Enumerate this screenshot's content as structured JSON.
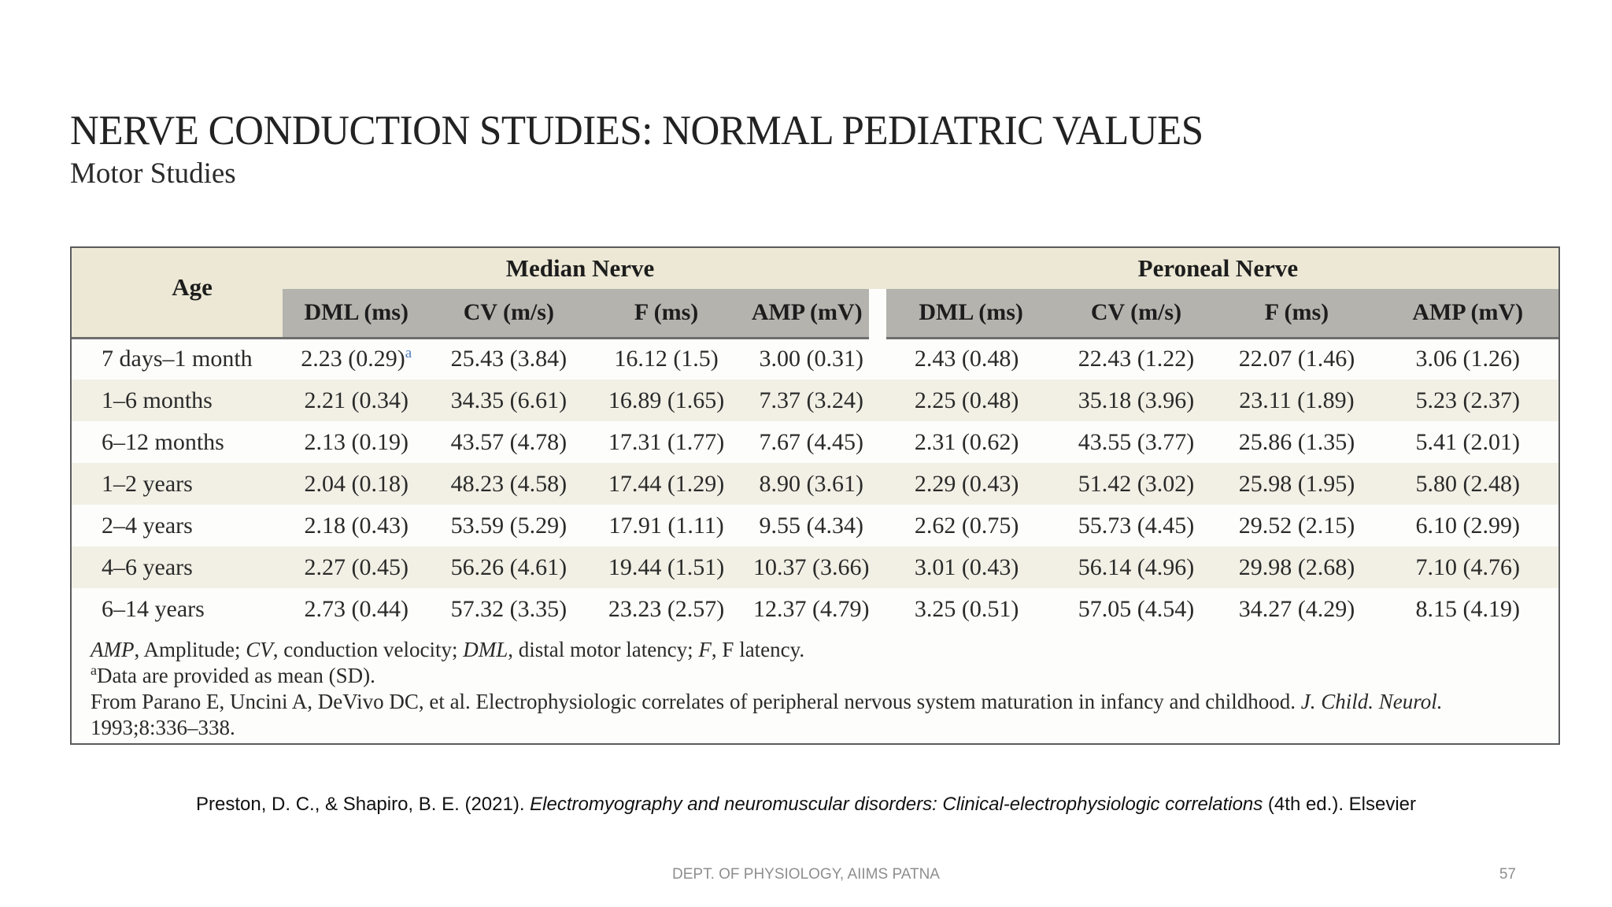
{
  "header": {
    "title": "NERVE CONDUCTION STUDIES: NORMAL PEDIATRIC VALUES",
    "subtitle": "Motor Studies"
  },
  "table": {
    "age_header": "Age",
    "groups": [
      "Median Nerve",
      "Peroneal Nerve"
    ],
    "col_headers": [
      "DML (ms)",
      "CV (m/s)",
      "F (ms)",
      "AMP (mV)"
    ],
    "sup_marker": "a",
    "rows": [
      {
        "age": "7 days–1 month",
        "cells": [
          "2.23 (0.29)",
          "25.43 (3.84)",
          "16.12 (1.5)",
          "3.00 (0.31)",
          "2.43 (0.48)",
          "22.43 (1.22)",
          "22.07 (1.46)",
          "3.06 (1.26)"
        ]
      },
      {
        "age": "1–6 months",
        "cells": [
          "2.21 (0.34)",
          "34.35 (6.61)",
          "16.89 (1.65)",
          "7.37 (3.24)",
          "2.25 (0.48)",
          "35.18 (3.96)",
          "23.11 (1.89)",
          "5.23 (2.37)"
        ]
      },
      {
        "age": "6–12 months",
        "cells": [
          "2.13 (0.19)",
          "43.57 (4.78)",
          "17.31 (1.77)",
          "7.67 (4.45)",
          "2.31 (0.62)",
          "43.55 (3.77)",
          "25.86 (1.35)",
          "5.41 (2.01)"
        ]
      },
      {
        "age": "1–2 years",
        "cells": [
          "2.04 (0.18)",
          "48.23 (4.58)",
          "17.44 (1.29)",
          "8.90 (3.61)",
          "2.29 (0.43)",
          "51.42 (3.02)",
          "25.98 (1.95)",
          "5.80 (2.48)"
        ]
      },
      {
        "age": "2–4 years",
        "cells": [
          "2.18 (0.43)",
          "53.59 (5.29)",
          "17.91 (1.11)",
          "9.55 (4.34)",
          "2.62 (0.75)",
          "55.73 (4.45)",
          "29.52 (2.15)",
          "6.10 (2.99)"
        ]
      },
      {
        "age": "4–6 years",
        "cells": [
          "2.27 (0.45)",
          "56.26 (4.61)",
          "19.44 (1.51)",
          "10.37 (3.66)",
          "3.01 (0.43)",
          "56.14 (4.96)",
          "29.98 (2.68)",
          "7.10 (4.76)"
        ]
      },
      {
        "age": "6–14 years",
        "cells": [
          "2.73 (0.44)",
          "57.32 (3.35)",
          "23.23 (2.57)",
          "12.37 (4.79)",
          "3.25 (0.51)",
          "57.05 (4.54)",
          "34.27 (4.29)",
          "8.15 (4.19)"
        ]
      }
    ],
    "footnotes": {
      "abbrev": [
        "AMP",
        ", Amplitude; ",
        "CV",
        ", conduction velocity; ",
        "DML",
        ", distal motor latency; ",
        "F",
        ", F latency."
      ],
      "mean_sd_sup": "a",
      "mean_sd_text": "Data are provided as mean (SD).",
      "source_main": "From Parano E, Uncini A, DeVivo DC, et al. Electrophysiologic correlates of peripheral nervous system maturation in infancy and childhood. ",
      "source_journal": "J. Child. Neurol.",
      "source_cont": "1993;8:336–338."
    }
  },
  "citation": {
    "pre": "Preston, D. C., & Shapiro, B. E. (2021). ",
    "title_italic": "Electromyography and neuromuscular disorders: Clinical-electrophysiologic correlations",
    "post": " (4th ed.). Elsevier"
  },
  "footer": {
    "dept": "DEPT. OF PHYSIOLOGY, AIIMS PATNA",
    "page": "57"
  },
  "colors": {
    "header_cream": "#ece8d5",
    "header_gray": "#b5b3ae",
    "row_alt_cream": "#f2f0e5",
    "border_dark": "#5a5b5d",
    "superscript_blue": "#4e7fbe"
  }
}
